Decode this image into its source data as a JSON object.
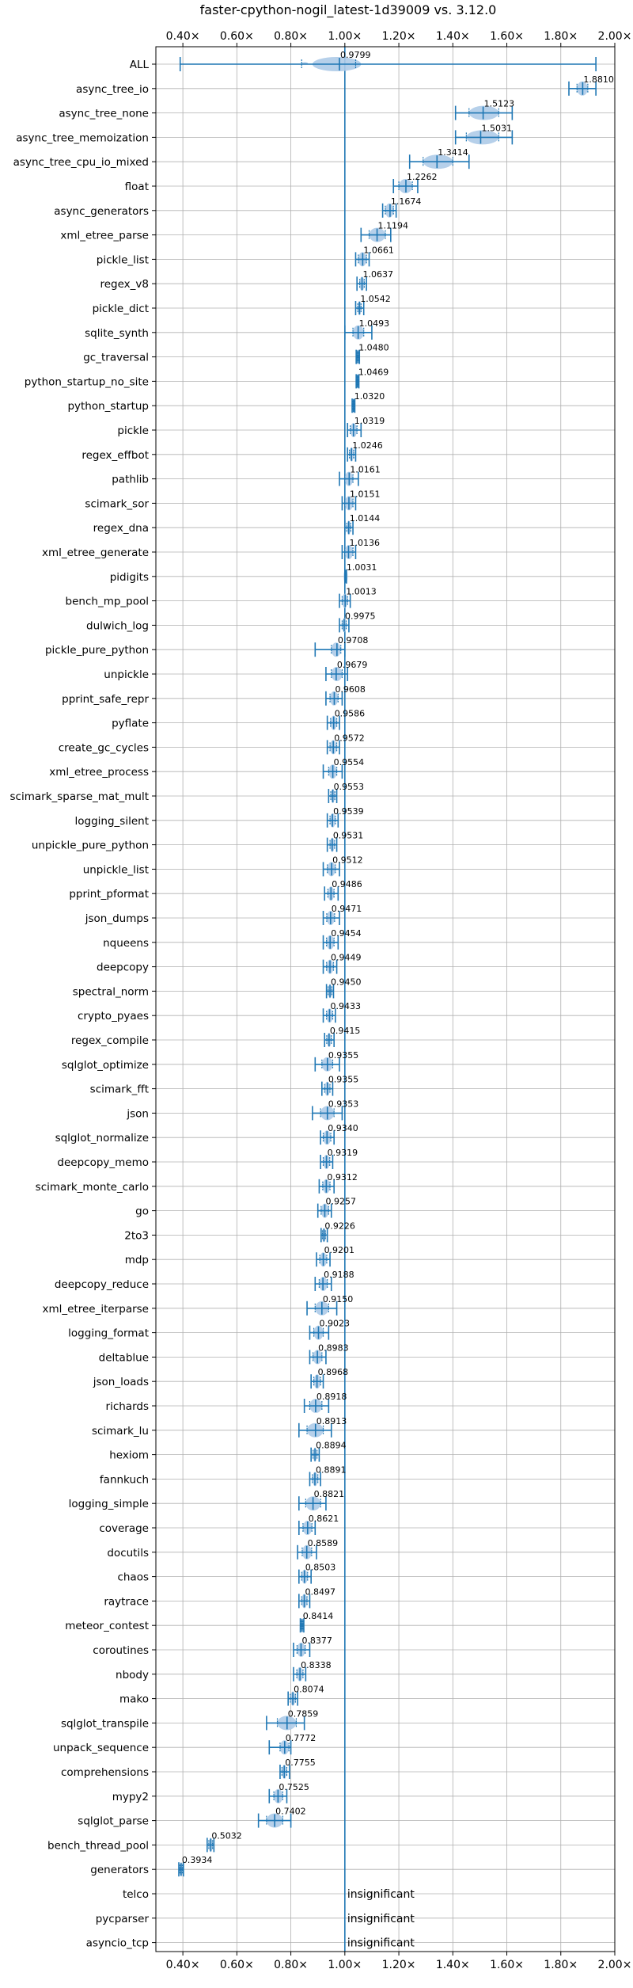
{
  "chart_data": {
    "type": "violin",
    "title": "faster-cpython-nogil_latest-1d39009 vs. 3.12.0",
    "xlim": [
      0.3,
      2.0
    ],
    "x_ticks": [
      "0.40×",
      "0.60×",
      "0.80×",
      "1.00×",
      "1.20×",
      "1.40×",
      "1.60×",
      "1.80×",
      "2.00×"
    ],
    "x_tick_values": [
      0.4,
      0.6,
      0.8,
      1.0,
      1.2,
      1.4,
      1.6,
      1.8,
      2.0
    ],
    "x_ticks_top_and_bottom": true,
    "reference_line": 1.0,
    "grid": true,
    "accent_color": "#1f77b4",
    "violin_color": "#aecbe8",
    "benchmarks": [
      {
        "name": "ALL",
        "value": 0.9799,
        "label": "0.9799",
        "min": 0.39,
        "max": 1.93,
        "q1": 0.84,
        "q3": 1.04,
        "violin": [
          0.88,
          1.06
        ],
        "kind": "all"
      },
      {
        "name": "async_tree_io",
        "value": 1.881,
        "label": "1.8810",
        "min": 1.83,
        "max": 1.93,
        "q1": 1.86,
        "q3": 1.9
      },
      {
        "name": "async_tree_none",
        "value": 1.5123,
        "label": "1.5123",
        "min": 1.41,
        "max": 1.62,
        "q1": 1.46,
        "q3": 1.57
      },
      {
        "name": "async_tree_memoization",
        "value": 1.5031,
        "label": "1.5031",
        "min": 1.41,
        "max": 1.62,
        "q1": 1.45,
        "q3": 1.57
      },
      {
        "name": "async_tree_cpu_io_mixed",
        "value": 1.3414,
        "label": "1.3414",
        "min": 1.24,
        "max": 1.46,
        "q1": 1.29,
        "q3": 1.4
      },
      {
        "name": "float",
        "value": 1.2262,
        "label": "1.2262",
        "min": 1.18,
        "max": 1.27,
        "q1": 1.2,
        "q3": 1.25
      },
      {
        "name": "async_generators",
        "value": 1.1674,
        "label": "1.1674",
        "min": 1.14,
        "max": 1.19,
        "q1": 1.15,
        "q3": 1.18
      },
      {
        "name": "xml_etree_parse",
        "value": 1.1194,
        "label": "1.1194",
        "min": 1.06,
        "max": 1.17,
        "q1": 1.09,
        "q3": 1.15
      },
      {
        "name": "pickle_list",
        "value": 1.0661,
        "label": "1.0661",
        "min": 1.04,
        "max": 1.09,
        "q1": 1.05,
        "q3": 1.08
      },
      {
        "name": "regex_v8",
        "value": 1.0637,
        "label": "1.0637",
        "min": 1.045,
        "max": 1.08,
        "q1": 1.055,
        "q3": 1.072
      },
      {
        "name": "pickle_dict",
        "value": 1.0542,
        "label": "1.0542",
        "min": 1.04,
        "max": 1.07,
        "q1": 1.048,
        "q3": 1.06
      },
      {
        "name": "sqlite_synth",
        "value": 1.0493,
        "label": "1.0493",
        "min": 1.0,
        "max": 1.1,
        "q1": 1.03,
        "q3": 1.07
      },
      {
        "name": "gc_traversal",
        "value": 1.048,
        "label": "1.0480",
        "min": 1.042,
        "max": 1.054,
        "q1": 1.045,
        "q3": 1.051
      },
      {
        "name": "python_startup_no_site",
        "value": 1.0469,
        "label": "1.0469",
        "min": 1.042,
        "max": 1.052,
        "q1": 1.044,
        "q3": 1.05
      },
      {
        "name": "python_startup",
        "value": 1.032,
        "label": "1.0320",
        "min": 1.027,
        "max": 1.037,
        "q1": 1.029,
        "q3": 1.035
      },
      {
        "name": "pickle",
        "value": 1.0319,
        "label": "1.0319",
        "min": 1.01,
        "max": 1.06,
        "q1": 1.02,
        "q3": 1.045
      },
      {
        "name": "regex_effbot",
        "value": 1.0246,
        "label": "1.0246",
        "min": 1.01,
        "max": 1.04,
        "q1": 1.017,
        "q3": 1.033
      },
      {
        "name": "pathlib",
        "value": 1.0161,
        "label": "1.0161",
        "min": 0.98,
        "max": 1.05,
        "q1": 1.0,
        "q3": 1.03
      },
      {
        "name": "scimark_sor",
        "value": 1.0151,
        "label": "1.0151",
        "min": 0.99,
        "max": 1.04,
        "q1": 1.0,
        "q3": 1.03
      },
      {
        "name": "regex_dna",
        "value": 1.0144,
        "label": "1.0144",
        "min": 1.0,
        "max": 1.03,
        "q1": 1.007,
        "q3": 1.022
      },
      {
        "name": "xml_etree_generate",
        "value": 1.0136,
        "label": "1.0136",
        "min": 0.99,
        "max": 1.04,
        "q1": 1.0,
        "q3": 1.03
      },
      {
        "name": "pidigits",
        "value": 1.0031,
        "label": "1.0031",
        "min": 1.0,
        "max": 1.006,
        "q1": 1.001,
        "q3": 1.005
      },
      {
        "name": "bench_mp_pool",
        "value": 1.0013,
        "label": "1.0013",
        "min": 0.98,
        "max": 1.02,
        "q1": 0.99,
        "q3": 1.01
      },
      {
        "name": "dulwich_log",
        "value": 0.9975,
        "label": "0.9975",
        "min": 0.98,
        "max": 1.015,
        "q1": 0.99,
        "q3": 1.005
      },
      {
        "name": "pickle_pure_python",
        "value": 0.9708,
        "label": "0.9708",
        "min": 0.89,
        "max": 1.0,
        "q1": 0.95,
        "q3": 0.985
      },
      {
        "name": "unpickle",
        "value": 0.9679,
        "label": "0.9679",
        "min": 0.93,
        "max": 1.01,
        "q1": 0.95,
        "q3": 0.99
      },
      {
        "name": "pprint_safe_repr",
        "value": 0.9608,
        "label": "0.9608",
        "min": 0.93,
        "max": 0.99,
        "q1": 0.945,
        "q3": 0.975
      },
      {
        "name": "pyflate",
        "value": 0.9586,
        "label": "0.9586",
        "min": 0.935,
        "max": 0.98,
        "q1": 0.947,
        "q3": 0.97
      },
      {
        "name": "create_gc_cycles",
        "value": 0.9572,
        "label": "0.9572",
        "min": 0.935,
        "max": 0.98,
        "q1": 0.945,
        "q3": 0.97
      },
      {
        "name": "xml_etree_process",
        "value": 0.9554,
        "label": "0.9554",
        "min": 0.92,
        "max": 0.99,
        "q1": 0.94,
        "q3": 0.97
      },
      {
        "name": "scimark_sparse_mat_mult",
        "value": 0.9553,
        "label": "0.9553",
        "min": 0.94,
        "max": 0.97,
        "q1": 0.948,
        "q3": 0.963
      },
      {
        "name": "logging_silent",
        "value": 0.9539,
        "label": "0.9539",
        "min": 0.935,
        "max": 0.975,
        "q1": 0.945,
        "q3": 0.965
      },
      {
        "name": "unpickle_pure_python",
        "value": 0.9531,
        "label": "0.9531",
        "min": 0.935,
        "max": 0.97,
        "q1": 0.945,
        "q3": 0.962
      },
      {
        "name": "unpickle_list",
        "value": 0.9512,
        "label": "0.9512",
        "min": 0.92,
        "max": 0.98,
        "q1": 0.935,
        "q3": 0.965
      },
      {
        "name": "pprint_pformat",
        "value": 0.9486,
        "label": "0.9486",
        "min": 0.925,
        "max": 0.975,
        "q1": 0.937,
        "q3": 0.96
      },
      {
        "name": "json_dumps",
        "value": 0.9471,
        "label": "0.9471",
        "min": 0.92,
        "max": 0.98,
        "q1": 0.933,
        "q3": 0.962
      },
      {
        "name": "nqueens",
        "value": 0.9454,
        "label": "0.9454",
        "min": 0.92,
        "max": 0.975,
        "q1": 0.932,
        "q3": 0.96
      },
      {
        "name": "deepcopy",
        "value": 0.9449,
        "label": "0.9449",
        "min": 0.92,
        "max": 0.97,
        "q1": 0.932,
        "q3": 0.958
      },
      {
        "name": "spectral_norm",
        "value": 0.945,
        "label": "0.9450",
        "min": 0.932,
        "max": 0.958,
        "q1": 0.938,
        "q3": 0.952
      },
      {
        "name": "crypto_pyaes",
        "value": 0.9433,
        "label": "0.9433",
        "min": 0.92,
        "max": 0.965,
        "q1": 0.932,
        "q3": 0.955
      },
      {
        "name": "regex_compile",
        "value": 0.9415,
        "label": "0.9415",
        "min": 0.925,
        "max": 0.96,
        "q1": 0.933,
        "q3": 0.95
      },
      {
        "name": "sqlglot_optimize",
        "value": 0.9355,
        "label": "0.9355",
        "min": 0.89,
        "max": 0.98,
        "q1": 0.915,
        "q3": 0.955
      },
      {
        "name": "scimark_fft",
        "value": 0.9355,
        "label": "0.9355",
        "min": 0.915,
        "max": 0.955,
        "q1": 0.925,
        "q3": 0.945
      },
      {
        "name": "json",
        "value": 0.9353,
        "label": "0.9353",
        "min": 0.88,
        "max": 0.99,
        "q1": 0.91,
        "q3": 0.96
      },
      {
        "name": "sqlglot_normalize",
        "value": 0.934,
        "label": "0.9340",
        "min": 0.91,
        "max": 0.96,
        "q1": 0.92,
        "q3": 0.948
      },
      {
        "name": "deepcopy_memo",
        "value": 0.9319,
        "label": "0.9319",
        "min": 0.91,
        "max": 0.955,
        "q1": 0.92,
        "q3": 0.944
      },
      {
        "name": "scimark_monte_carlo",
        "value": 0.9312,
        "label": "0.9312",
        "min": 0.905,
        "max": 0.96,
        "q1": 0.918,
        "q3": 0.945
      },
      {
        "name": "go",
        "value": 0.9257,
        "label": "0.9257",
        "min": 0.9,
        "max": 0.95,
        "q1": 0.912,
        "q3": 0.94
      },
      {
        "name": "2to3",
        "value": 0.9226,
        "label": "0.9226",
        "min": 0.912,
        "max": 0.935,
        "q1": 0.917,
        "q3": 0.928
      },
      {
        "name": "mdp",
        "value": 0.9201,
        "label": "0.9201",
        "min": 0.895,
        "max": 0.945,
        "q1": 0.907,
        "q3": 0.933
      },
      {
        "name": "deepcopy_reduce",
        "value": 0.9188,
        "label": "0.9188",
        "min": 0.89,
        "max": 0.95,
        "q1": 0.905,
        "q3": 0.935
      },
      {
        "name": "xml_etree_iterparse",
        "value": 0.915,
        "label": "0.9150",
        "min": 0.86,
        "max": 0.97,
        "q1": 0.89,
        "q3": 0.94
      },
      {
        "name": "logging_format",
        "value": 0.9023,
        "label": "0.9023",
        "min": 0.87,
        "max": 0.94,
        "q1": 0.885,
        "q3": 0.92
      },
      {
        "name": "deltablue",
        "value": 0.8983,
        "label": "0.8983",
        "min": 0.87,
        "max": 0.93,
        "q1": 0.882,
        "q3": 0.915
      },
      {
        "name": "json_loads",
        "value": 0.8968,
        "label": "0.8968",
        "min": 0.875,
        "max": 0.92,
        "q1": 0.885,
        "q3": 0.91
      },
      {
        "name": "richards",
        "value": 0.8918,
        "label": "0.8918",
        "min": 0.85,
        "max": 0.94,
        "q1": 0.87,
        "q3": 0.915
      },
      {
        "name": "scimark_lu",
        "value": 0.8913,
        "label": "0.8913",
        "min": 0.83,
        "max": 0.95,
        "q1": 0.86,
        "q3": 0.92
      },
      {
        "name": "hexiom",
        "value": 0.8894,
        "label": "0.8894",
        "min": 0.875,
        "max": 0.905,
        "q1": 0.882,
        "q3": 0.897
      },
      {
        "name": "fannkuch",
        "value": 0.8891,
        "label": "0.8891",
        "min": 0.87,
        "max": 0.91,
        "q1": 0.88,
        "q3": 0.9
      },
      {
        "name": "logging_simple",
        "value": 0.8821,
        "label": "0.8821",
        "min": 0.83,
        "max": 0.93,
        "q1": 0.855,
        "q3": 0.91
      },
      {
        "name": "coverage",
        "value": 0.8621,
        "label": "0.8621",
        "min": 0.83,
        "max": 0.89,
        "q1": 0.845,
        "q3": 0.878
      },
      {
        "name": "docutils",
        "value": 0.8589,
        "label": "0.8589",
        "min": 0.825,
        "max": 0.895,
        "q1": 0.842,
        "q3": 0.877
      },
      {
        "name": "chaos",
        "value": 0.8503,
        "label": "0.8503",
        "min": 0.83,
        "max": 0.875,
        "q1": 0.84,
        "q3": 0.862
      },
      {
        "name": "raytrace",
        "value": 0.8497,
        "label": "0.8497",
        "min": 0.83,
        "max": 0.87,
        "q1": 0.84,
        "q3": 0.86
      },
      {
        "name": "meteor_contest",
        "value": 0.8414,
        "label": "0.8414",
        "min": 0.835,
        "max": 0.848,
        "q1": 0.838,
        "q3": 0.845
      },
      {
        "name": "coroutines",
        "value": 0.8377,
        "label": "0.8377",
        "min": 0.81,
        "max": 0.87,
        "q1": 0.823,
        "q3": 0.853
      },
      {
        "name": "nbody",
        "value": 0.8338,
        "label": "0.8338",
        "min": 0.81,
        "max": 0.855,
        "q1": 0.822,
        "q3": 0.845
      },
      {
        "name": "mako",
        "value": 0.8074,
        "label": "0.8074",
        "min": 0.79,
        "max": 0.825,
        "q1": 0.798,
        "q3": 0.817
      },
      {
        "name": "sqlglot_transpile",
        "value": 0.7859,
        "label": "0.7859",
        "min": 0.71,
        "max": 0.85,
        "q1": 0.75,
        "q3": 0.82
      },
      {
        "name": "unpack_sequence",
        "value": 0.7772,
        "label": "0.7772",
        "min": 0.72,
        "max": 0.8,
        "q1": 0.76,
        "q3": 0.793
      },
      {
        "name": "comprehensions",
        "value": 0.7755,
        "label": "0.7755",
        "min": 0.76,
        "max": 0.795,
        "q1": 0.767,
        "q3": 0.785
      },
      {
        "name": "mypy2",
        "value": 0.7525,
        "label": "0.7525",
        "min": 0.72,
        "max": 0.785,
        "q1": 0.737,
        "q3": 0.77
      },
      {
        "name": "sqlglot_parse",
        "value": 0.7402,
        "label": "0.7402",
        "min": 0.68,
        "max": 0.8,
        "q1": 0.71,
        "q3": 0.77
      },
      {
        "name": "bench_thread_pool",
        "value": 0.5032,
        "label": "0.5032",
        "min": 0.49,
        "max": 0.515,
        "q1": 0.496,
        "q3": 0.51
      },
      {
        "name": "generators",
        "value": 0.3934,
        "label": "0.3934",
        "min": 0.385,
        "max": 0.402,
        "q1": 0.389,
        "q3": 0.398
      },
      {
        "name": "telco",
        "value": null,
        "label": "insignificant"
      },
      {
        "name": "pycparser",
        "value": null,
        "label": "insignificant"
      },
      {
        "name": "asyncio_tcp",
        "value": null,
        "label": "insignificant"
      }
    ]
  }
}
